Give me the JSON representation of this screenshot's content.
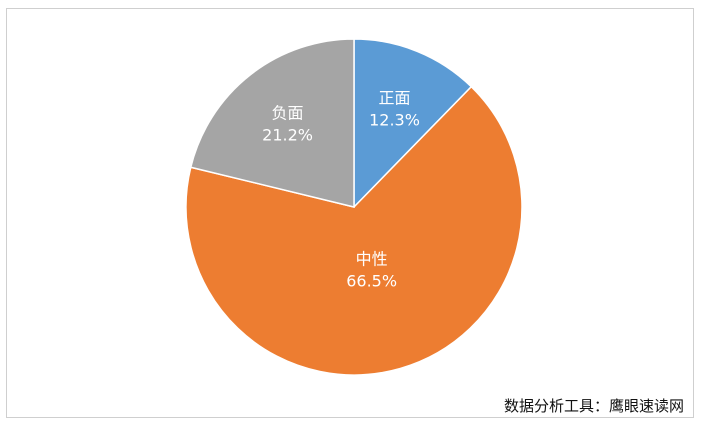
{
  "chart_data": {
    "type": "pie",
    "title": "",
    "start_angle_deg": 0,
    "direction": "clockwise",
    "slices": [
      {
        "name": "正面",
        "value": 12.3,
        "label": "12.3%",
        "color": "#5B9BD5"
      },
      {
        "name": "中性",
        "value": 66.5,
        "label": "66.5%",
        "color": "#ED7D31"
      },
      {
        "name": "负面",
        "value": 21.2,
        "label": "21.2%",
        "color": "#A5A5A5"
      }
    ],
    "legend": "none",
    "slice_border_color": "#ffffff"
  },
  "footer": {
    "source": "数据分析工具：鹰眼速读网"
  }
}
